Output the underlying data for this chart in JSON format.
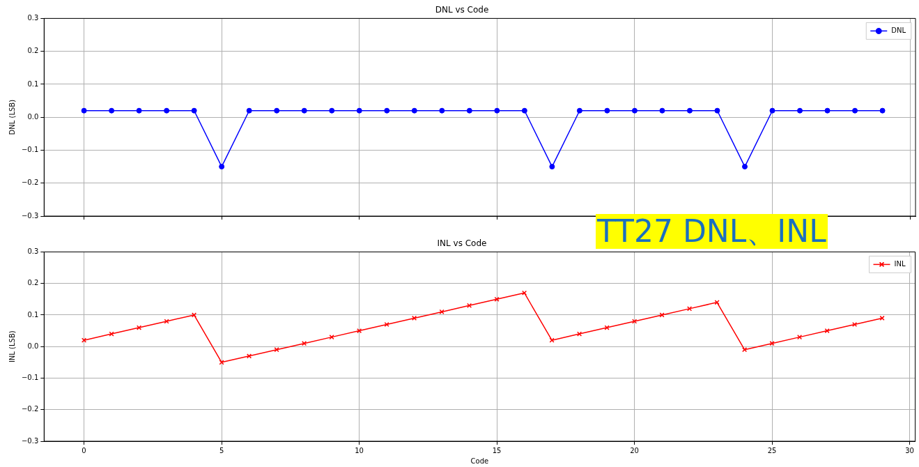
{
  "chart_data": [
    {
      "type": "line",
      "title": "DNL vs Code",
      "ylabel": "DNL (LSB)",
      "x": [
        0,
        1,
        2,
        3,
        4,
        5,
        6,
        7,
        8,
        9,
        10,
        11,
        12,
        13,
        14,
        15,
        16,
        17,
        18,
        19,
        20,
        21,
        22,
        23,
        24,
        25,
        26,
        27,
        28,
        29
      ],
      "series": [
        {
          "name": "DNL",
          "color": "#0000ff",
          "values": [
            0.02,
            0.02,
            0.02,
            0.02,
            0.02,
            -0.15,
            0.02,
            0.02,
            0.02,
            0.02,
            0.02,
            0.02,
            0.02,
            0.02,
            0.02,
            0.02,
            0.02,
            -0.15,
            0.02,
            0.02,
            0.02,
            0.02,
            0.02,
            0.02,
            -0.15,
            0.02,
            0.02,
            0.02,
            0.02,
            0.02
          ]
        }
      ],
      "xlim": [
        -1.45,
        30.2
      ],
      "xticks": [
        {
          "value": 0,
          "label": null
        },
        {
          "value": 5,
          "label": null
        },
        {
          "value": 10,
          "label": null
        },
        {
          "value": 15,
          "label": null
        },
        {
          "value": 20,
          "label": null
        },
        {
          "value": 25,
          "label": null
        },
        {
          "value": 30,
          "label": null
        }
      ],
      "ylim": [
        -0.3,
        0.3
      ],
      "yticks": [
        {
          "value": -0.3,
          "label": "−0.3"
        },
        {
          "value": -0.2,
          "label": "−0.2"
        },
        {
          "value": -0.1,
          "label": "−0.1"
        },
        {
          "value": 0,
          "label": "0.0"
        },
        {
          "value": 0.1,
          "label": "0.1"
        },
        {
          "value": 0.2,
          "label": "0.2"
        },
        {
          "value": 0.3,
          "label": "0.3"
        }
      ],
      "tick_labels": "y",
      "grid": true,
      "legend": "top right",
      "marker": "circle",
      "line_style": "solid"
    },
    {
      "type": "line",
      "title": "INL vs Code",
      "xlabel": "Code",
      "ylabel": "INL (LSB)",
      "annotations": [
        "TT27 DNL、INL"
      ],
      "x": [
        0,
        1,
        2,
        3,
        4,
        5,
        6,
        7,
        8,
        9,
        10,
        11,
        12,
        13,
        14,
        15,
        16,
        17,
        18,
        19,
        20,
        21,
        22,
        23,
        24,
        25,
        26,
        27,
        28,
        29
      ],
      "series": [
        {
          "name": "INL",
          "color": "#ff0000",
          "values": [
            0.02,
            0.04,
            0.06,
            0.08,
            0.1,
            -0.05,
            -0.03,
            -0.01,
            0.01,
            0.03,
            0.05,
            0.07,
            0.09,
            0.11,
            0.13,
            0.15,
            0.17,
            0.02,
            0.04,
            0.06,
            0.08,
            0.1,
            0.12,
            0.14,
            -0.01,
            0.01,
            0.03,
            0.05,
            0.07,
            0.09
          ]
        }
      ],
      "xlim": [
        -1.45,
        30.2
      ],
      "xticks": [
        0,
        5,
        10,
        15,
        20,
        25,
        30
      ],
      "ylim": [
        -0.3,
        0.3
      ],
      "yticks": [
        {
          "value": -0.3,
          "label": "−0.3"
        },
        {
          "value": -0.2,
          "label": "−0.2"
        },
        {
          "value": -0.1,
          "label": "−0.1"
        },
        {
          "value": 0,
          "label": "0.0"
        },
        {
          "value": 0.1,
          "label": "0.1"
        },
        {
          "value": 0.2,
          "label": "0.2"
        },
        {
          "value": 0.3,
          "label": "0.3"
        }
      ],
      "grid": true,
      "legend": "top right",
      "marker": "cross",
      "line_style": "solid"
    }
  ]
}
